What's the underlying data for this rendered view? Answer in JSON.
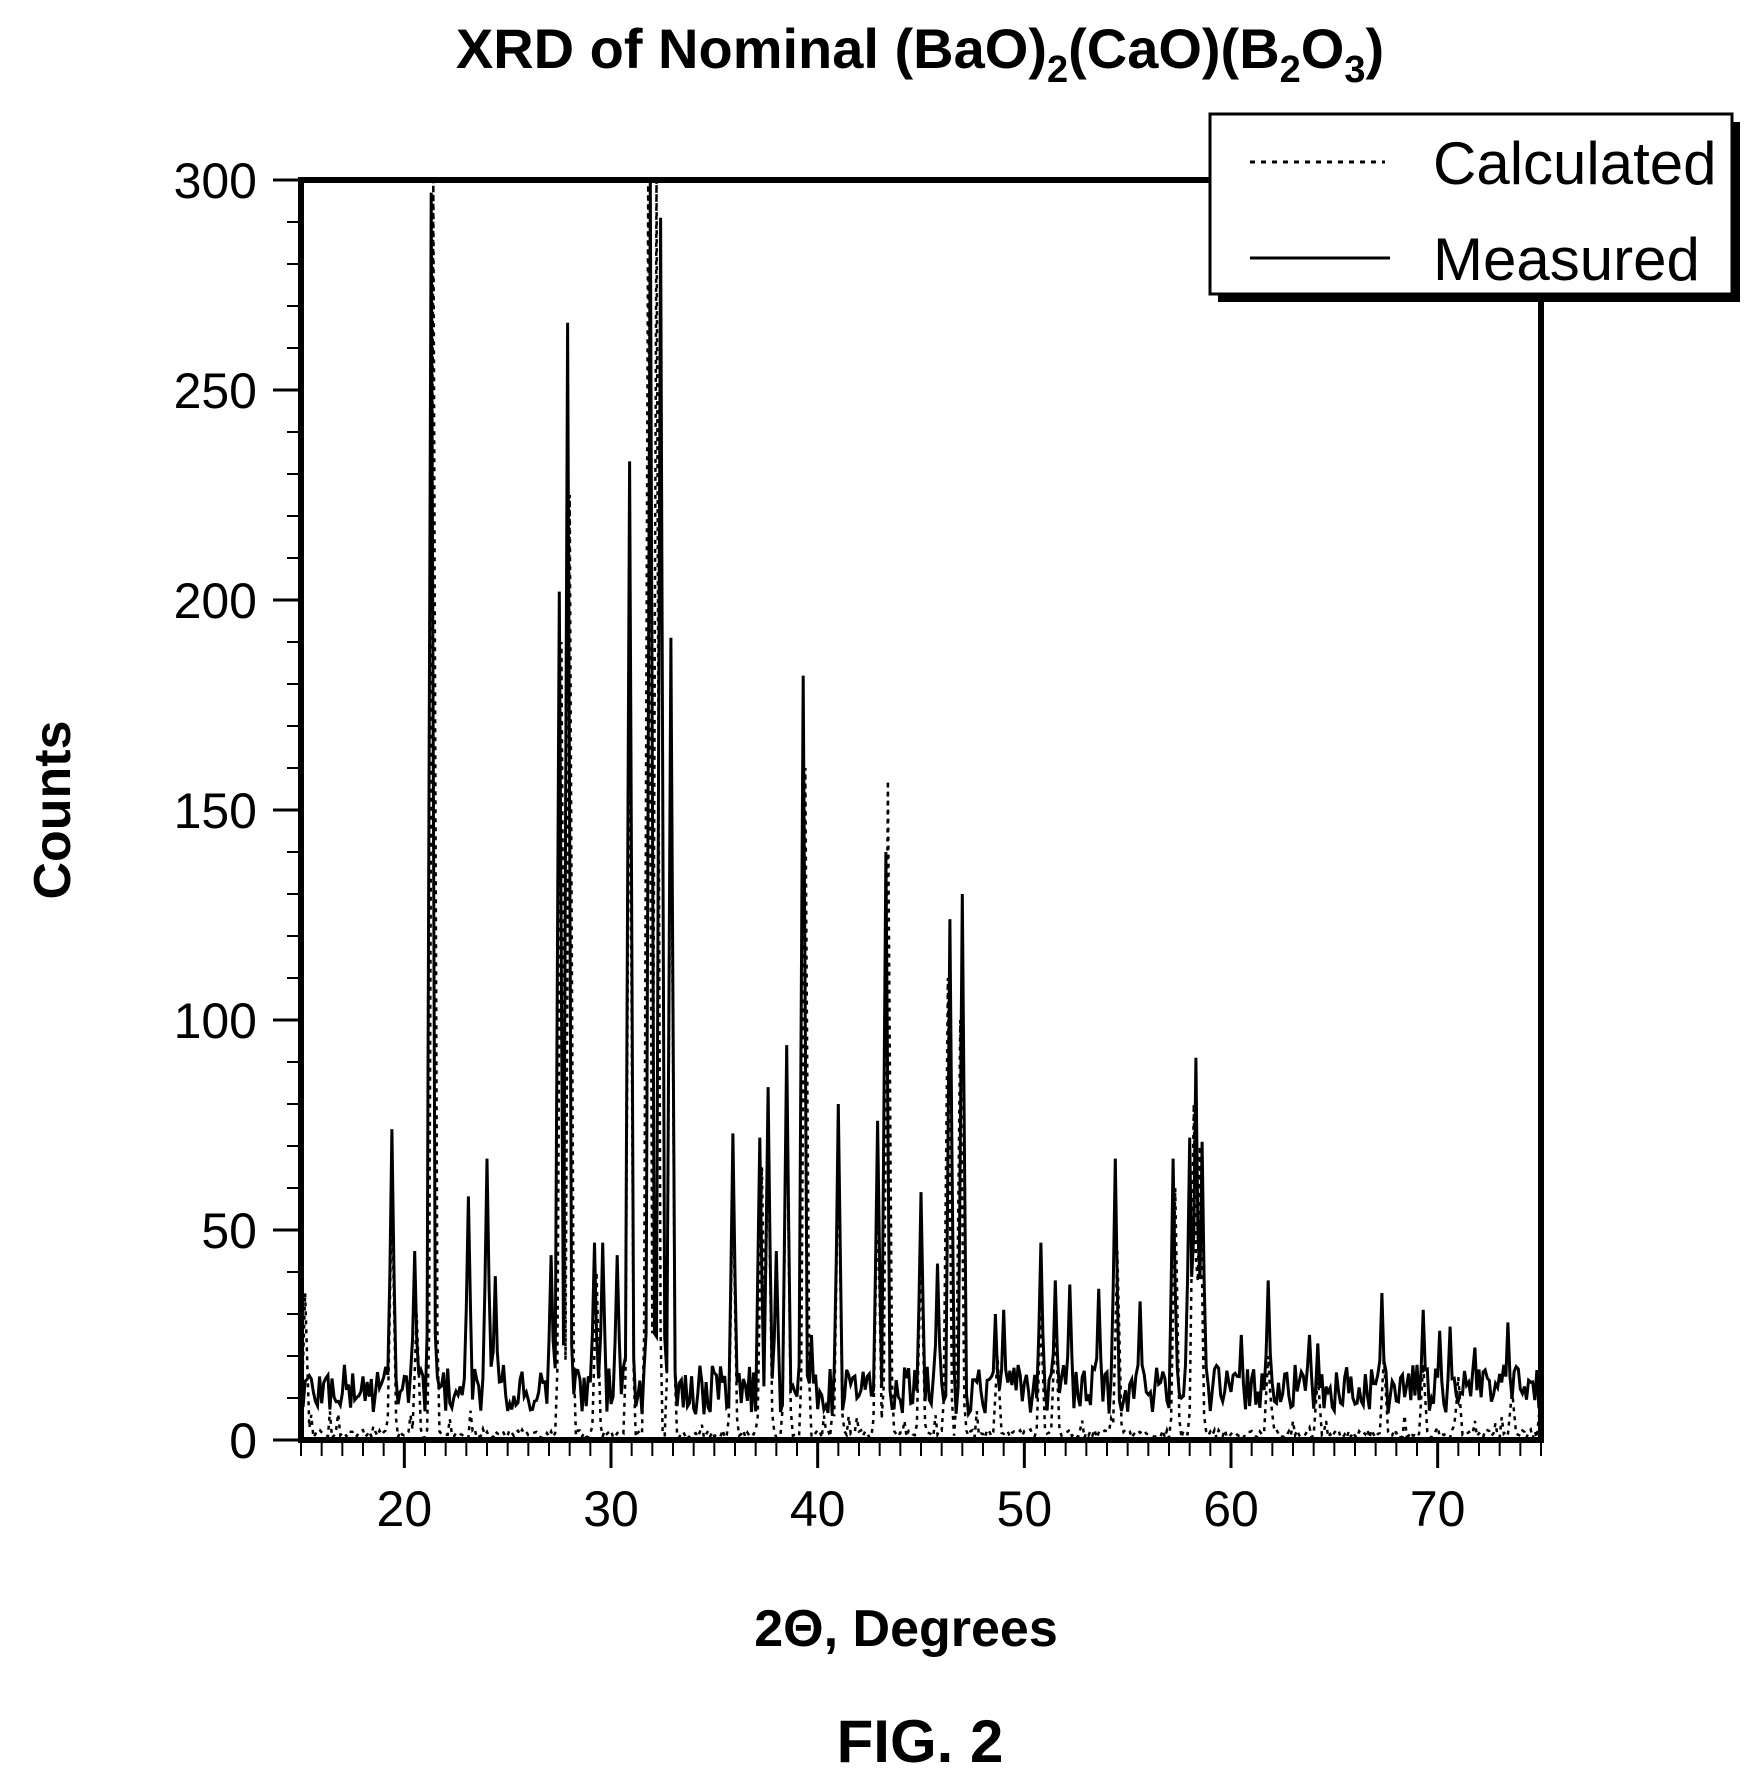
{
  "figure_label": "FIG. 2",
  "chart_data": {
    "type": "line",
    "title": {
      "prefix": "XRD of Nominal (BaO)",
      "sub1": "2",
      "mid": "(CaO)(B",
      "sub2": "2",
      "mid2": "O",
      "sub3": "3",
      "suffix": ")"
    },
    "xlabel": "2Θ, Degrees",
    "ylabel": "Counts",
    "xlim": [
      15,
      75
    ],
    "ylim": [
      0,
      300
    ],
    "x_ticks": [
      20,
      30,
      40,
      50,
      60,
      70
    ],
    "y_ticks": [
      0,
      50,
      100,
      150,
      200,
      250,
      300
    ],
    "x_minor_step": 1,
    "y_minor_step": 10,
    "grid": false,
    "legend_position": "top-right",
    "series": [
      {
        "name": "Calculated",
        "style": "dotted",
        "color": "#000000",
        "peaks": [
          [
            15.2,
            35
          ],
          [
            19.4,
            60
          ],
          [
            20.6,
            30
          ],
          [
            21.4,
            300
          ],
          [
            27.6,
            190
          ],
          [
            28.0,
            225
          ],
          [
            29.3,
            40
          ],
          [
            30.9,
            185
          ],
          [
            31.8,
            300
          ],
          [
            32.2,
            300
          ],
          [
            32.9,
            170
          ],
          [
            35.9,
            60
          ],
          [
            37.3,
            65
          ],
          [
            37.6,
            75
          ],
          [
            38.5,
            85
          ],
          [
            39.4,
            160
          ],
          [
            41.0,
            70
          ],
          [
            42.9,
            60
          ],
          [
            43.4,
            157
          ],
          [
            45.0,
            45
          ],
          [
            46.3,
            110
          ],
          [
            46.9,
            100
          ],
          [
            48.7,
            20
          ],
          [
            50.8,
            30
          ],
          [
            51.5,
            28
          ],
          [
            54.5,
            45
          ],
          [
            57.3,
            60
          ],
          [
            58.2,
            80
          ],
          [
            58.5,
            70
          ],
          [
            61.8,
            20
          ],
          [
            64.2,
            15
          ],
          [
            67.4,
            20
          ],
          [
            69.3,
            18
          ],
          [
            71.0,
            15
          ],
          [
            73.6,
            12
          ]
        ]
      },
      {
        "name": "Measured",
        "style": "solid",
        "color": "#000000",
        "peaks": [
          [
            19.4,
            74
          ],
          [
            20.5,
            45
          ],
          [
            21.3,
            297
          ],
          [
            23.1,
            58
          ],
          [
            24.0,
            67
          ],
          [
            24.4,
            39
          ],
          [
            27.1,
            44
          ],
          [
            27.5,
            202
          ],
          [
            27.9,
            266
          ],
          [
            29.2,
            47
          ],
          [
            29.6,
            47
          ],
          [
            30.3,
            44
          ],
          [
            30.9,
            233
          ],
          [
            31.9,
            300
          ],
          [
            32.4,
            291
          ],
          [
            32.9,
            191
          ],
          [
            35.9,
            73
          ],
          [
            37.2,
            72
          ],
          [
            37.6,
            84
          ],
          [
            38.0,
            45
          ],
          [
            38.5,
            94
          ],
          [
            39.3,
            182
          ],
          [
            39.7,
            25
          ],
          [
            41.0,
            80
          ],
          [
            42.9,
            76
          ],
          [
            43.3,
            140
          ],
          [
            45.0,
            59
          ],
          [
            45.8,
            42
          ],
          [
            46.4,
            124
          ],
          [
            47.0,
            130
          ],
          [
            48.6,
            30
          ],
          [
            49.0,
            31
          ],
          [
            50.8,
            47
          ],
          [
            51.5,
            38
          ],
          [
            52.2,
            37
          ],
          [
            53.6,
            36
          ],
          [
            54.4,
            67
          ],
          [
            55.6,
            33
          ],
          [
            57.2,
            67
          ],
          [
            58.0,
            72
          ],
          [
            58.3,
            91
          ],
          [
            58.6,
            71
          ],
          [
            60.5,
            25
          ],
          [
            61.8,
            38
          ],
          [
            63.8,
            25
          ],
          [
            64.2,
            23
          ],
          [
            67.3,
            35
          ],
          [
            69.3,
            31
          ],
          [
            70.1,
            26
          ],
          [
            70.6,
            27
          ],
          [
            71.8,
            22
          ],
          [
            73.4,
            28
          ]
        ]
      }
    ]
  }
}
